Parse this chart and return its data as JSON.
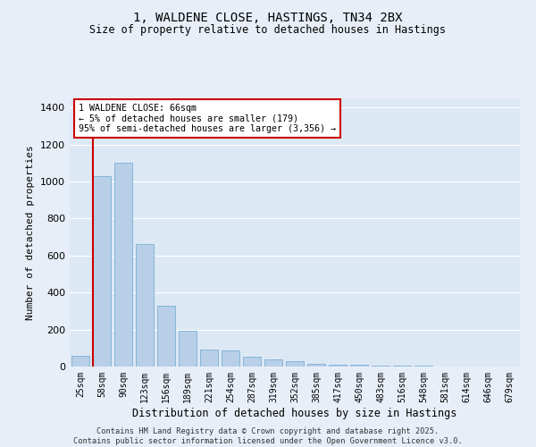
{
  "title_line1": "1, WALDENE CLOSE, HASTINGS, TN34 2BX",
  "title_line2": "Size of property relative to detached houses in Hastings",
  "xlabel": "Distribution of detached houses by size in Hastings",
  "ylabel": "Number of detached properties",
  "annotation_line1": "1 WALDENE CLOSE: 66sqm",
  "annotation_line2": "← 5% of detached houses are smaller (179)",
  "annotation_line3": "95% of semi-detached houses are larger (3,356) →",
  "bar_color": "#b8cfe8",
  "bar_edge_color": "#7aafd4",
  "background_color": "#dde8f5",
  "grid_color": "#ffffff",
  "fig_background": "#e8eef8",
  "vline_color": "#cc0000",
  "vline_x": 0.57,
  "categories": [
    "25sqm",
    "58sqm",
    "90sqm",
    "123sqm",
    "156sqm",
    "189sqm",
    "221sqm",
    "254sqm",
    "287sqm",
    "319sqm",
    "352sqm",
    "385sqm",
    "417sqm",
    "450sqm",
    "483sqm",
    "516sqm",
    "548sqm",
    "581sqm",
    "614sqm",
    "646sqm",
    "679sqm"
  ],
  "values": [
    60,
    1030,
    1100,
    660,
    330,
    195,
    90,
    87,
    55,
    38,
    30,
    15,
    12,
    10,
    5,
    5,
    3,
    2,
    1,
    1,
    0
  ],
  "ylim": [
    0,
    1450
  ],
  "yticks": [
    0,
    200,
    400,
    600,
    800,
    1000,
    1200,
    1400
  ],
  "footer_line1": "Contains HM Land Registry data © Crown copyright and database right 2025.",
  "footer_line2": "Contains public sector information licensed under the Open Government Licence v3.0."
}
